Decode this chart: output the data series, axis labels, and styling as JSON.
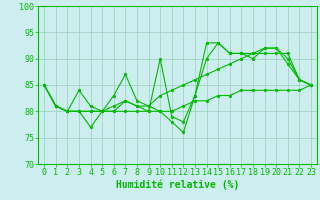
{
  "x": [
    0,
    1,
    2,
    3,
    4,
    5,
    6,
    7,
    8,
    9,
    10,
    11,
    12,
    13,
    14,
    15,
    16,
    17,
    18,
    19,
    20,
    21,
    22,
    23
  ],
  "line1": [
    85,
    81,
    80,
    84,
    81,
    80,
    80,
    82,
    81,
    80,
    90,
    79,
    78,
    83,
    93,
    93,
    91,
    91,
    90,
    92,
    92,
    89,
    86,
    85
  ],
  "line2": [
    85,
    81,
    80,
    80,
    77,
    80,
    83,
    87,
    82,
    81,
    80,
    78,
    76,
    83,
    90,
    93,
    91,
    91,
    91,
    92,
    92,
    90,
    86,
    85
  ],
  "line3": [
    85,
    81,
    80,
    80,
    80,
    80,
    81,
    82,
    81,
    81,
    83,
    84,
    85,
    86,
    87,
    88,
    89,
    90,
    91,
    91,
    91,
    91,
    86,
    85
  ],
  "line4": [
    85,
    81,
    80,
    80,
    80,
    80,
    80,
    80,
    80,
    80,
    80,
    80,
    81,
    82,
    82,
    83,
    83,
    84,
    84,
    84,
    84,
    84,
    84,
    85
  ],
  "xlim": [
    -0.5,
    23.5
  ],
  "ylim": [
    70,
    100
  ],
  "yticks": [
    70,
    75,
    80,
    85,
    90,
    95,
    100
  ],
  "xticks": [
    0,
    1,
    2,
    3,
    4,
    5,
    6,
    7,
    8,
    9,
    10,
    11,
    12,
    13,
    14,
    15,
    16,
    17,
    18,
    19,
    20,
    21,
    22,
    23
  ],
  "xlabel": "Humidité relative (%)",
  "line_color": "#00bb00",
  "bg_color": "#cceeee",
  "grid_color": "#99ccbb",
  "marker": "o",
  "marker_size": 1.8,
  "line_width": 0.8,
  "xlabel_fontsize": 7,
  "tick_fontsize": 6
}
